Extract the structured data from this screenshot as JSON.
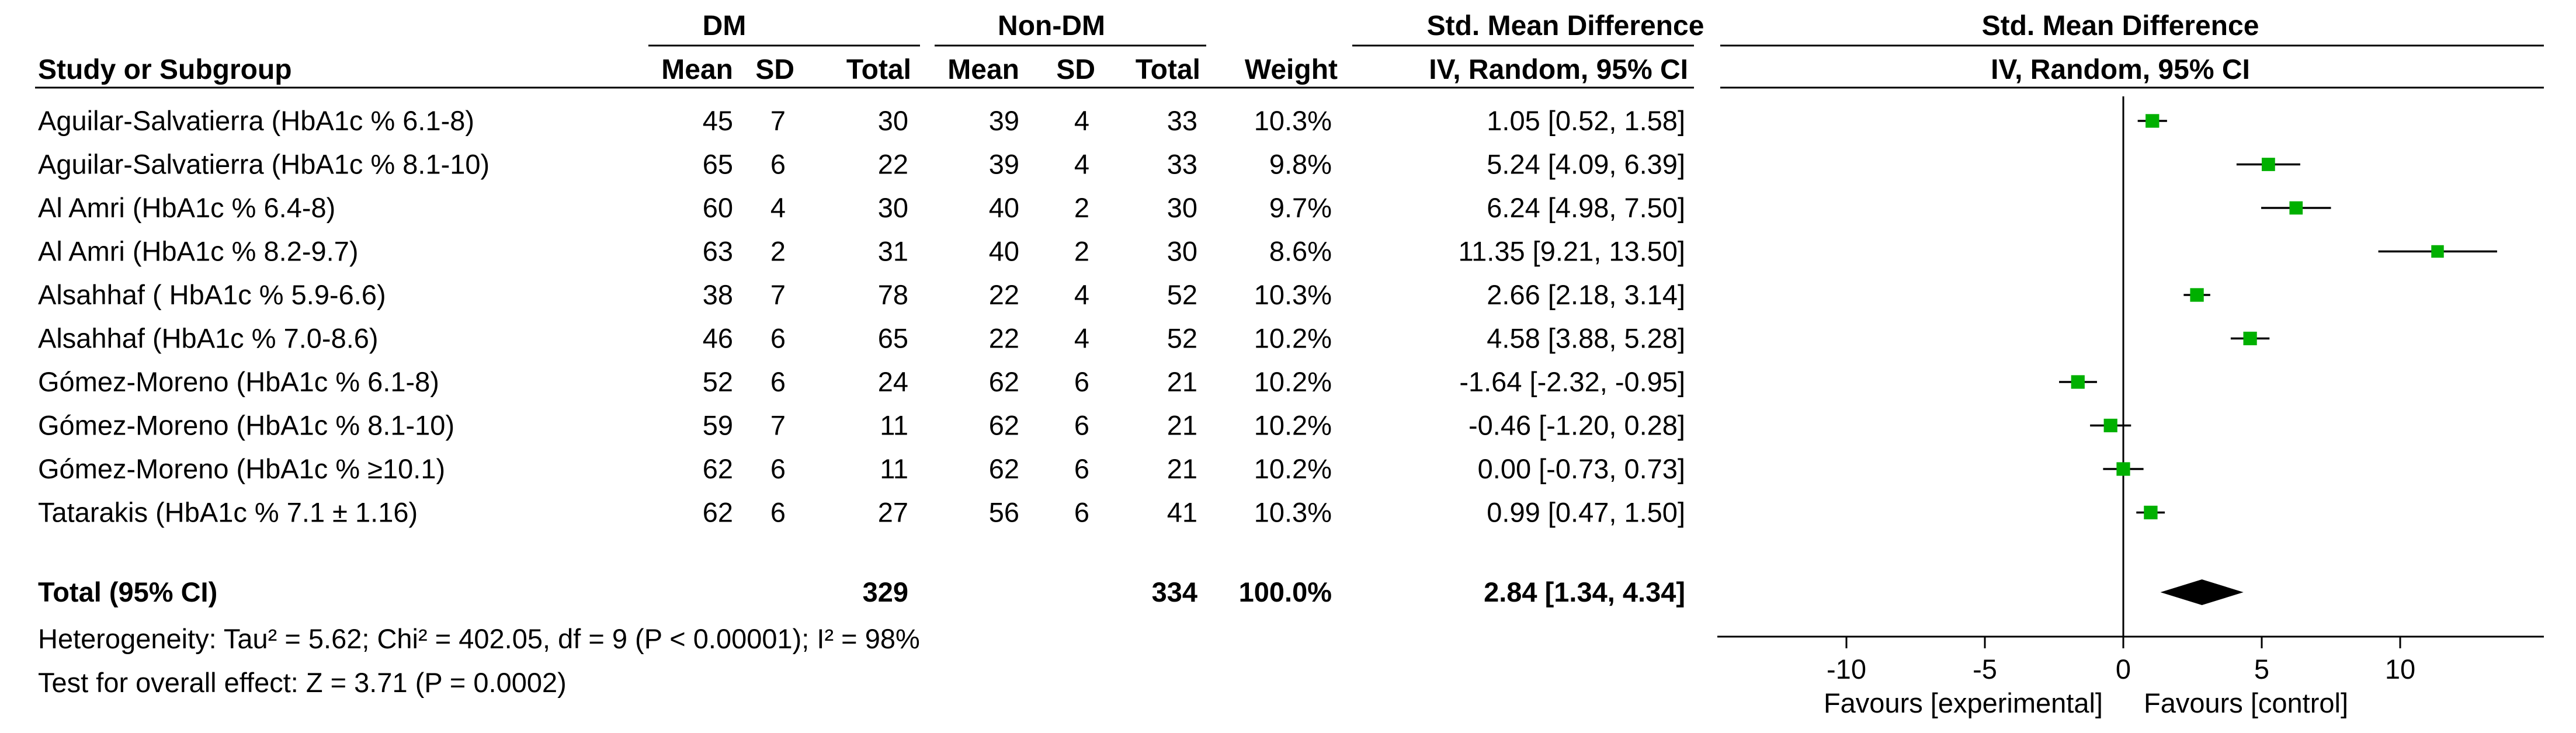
{
  "table": {
    "group_headers": {
      "experimental": "DM",
      "control": "Non-DM",
      "effect": "Std. Mean Difference",
      "plot": "Std. Mean Difference"
    },
    "columns": {
      "study": "Study or Subgroup",
      "mean1": "Mean",
      "sd1": "SD",
      "total1": "Total",
      "mean2": "Mean",
      "sd2": "SD",
      "total2": "Total",
      "weight": "Weight",
      "effect_method": "IV, Random, 95% CI",
      "plot_method": "IV, Random, 95% CI"
    },
    "rows": [
      {
        "study": "Aguilar-Salvatierra (HbA1c % 6.1-8)",
        "mean1": "45",
        "sd1": "7",
        "total1": "30",
        "mean2": "39",
        "sd2": "4",
        "total2": "33",
        "weight": "10.3%",
        "ci_text": "1.05 [0.52, 1.58]"
      },
      {
        "study": "Aguilar-Salvatierra  (HbA1c % 8.1-10)",
        "mean1": "65",
        "sd1": "6",
        "total1": "22",
        "mean2": "39",
        "sd2": "4",
        "total2": "33",
        "weight": "9.8%",
        "ci_text": "5.24 [4.09, 6.39]"
      },
      {
        "study": "Al Amri (HbA1c % 6.4-8)",
        "mean1": "60",
        "sd1": "4",
        "total1": "30",
        "mean2": "40",
        "sd2": "2",
        "total2": "30",
        "weight": "9.7%",
        "ci_text": "6.24 [4.98, 7.50]"
      },
      {
        "study": "Al Amri (HbA1c % 8.2-9.7)",
        "mean1": "63",
        "sd1": "2",
        "total1": "31",
        "mean2": "40",
        "sd2": "2",
        "total2": "30",
        "weight": "8.6%",
        "ci_text": "11.35 [9.21, 13.50]"
      },
      {
        "study": "Alsahhaf ( HbA1c % 5.9-6.6)",
        "mean1": "38",
        "sd1": "7",
        "total1": "78",
        "mean2": "22",
        "sd2": "4",
        "total2": "52",
        "weight": "10.3%",
        "ci_text": "2.66 [2.18, 3.14]"
      },
      {
        "study": "Alsahhaf (HbA1c % 7.0-8.6)",
        "mean1": "46",
        "sd1": "6",
        "total1": "65",
        "mean2": "22",
        "sd2": "4",
        "total2": "52",
        "weight": "10.2%",
        "ci_text": "4.58 [3.88, 5.28]"
      },
      {
        "study": "Gómez-Moreno   (HbA1c % 6.1-8)",
        "mean1": "52",
        "sd1": "6",
        "total1": "24",
        "mean2": "62",
        "sd2": "6",
        "total2": "21",
        "weight": "10.2%",
        "ci_text": "-1.64 [-2.32, -0.95]"
      },
      {
        "study": "Gómez-Moreno  (HbA1c % 8.1-10)",
        "mean1": "59",
        "sd1": "7",
        "total1": "11",
        "mean2": "62",
        "sd2": "6",
        "total2": "21",
        "weight": "10.2%",
        "ci_text": "-0.46 [-1.20, 0.28]"
      },
      {
        "study": "Gómez-Moreno (HbA1c % ≥10.1)",
        "mean1": "62",
        "sd1": "6",
        "total1": "11",
        "mean2": "62",
        "sd2": "6",
        "total2": "21",
        "weight": "10.2%",
        "ci_text": "0.00 [-0.73, 0.73]"
      },
      {
        "study": "Tatarakis  (HbA1c %  7.1 ± 1.16)",
        "mean1": "62",
        "sd1": "6",
        "total1": "27",
        "mean2": "56",
        "sd2": "6",
        "total2": "41",
        "weight": "10.3%",
        "ci_text": "0.99 [0.47, 1.50]"
      }
    ],
    "total_row": {
      "label": "Total (95% CI)",
      "total1": "329",
      "total2": "334",
      "weight": "100.0%",
      "ci_text": "2.84 [1.34, 4.34]"
    },
    "heterogeneity": "Heterogeneity: Tau² = 5.62; Chi² = 402.05, df = 9 (P < 0.00001); I² = 98%",
    "overall_effect": "Test for overall effect: Z = 3.71 (P = 0.0002)"
  },
  "chart_data": {
    "type": "forest",
    "x_ticks": [
      "-10",
      "-5",
      "0",
      "5",
      "10"
    ],
    "xlim": [
      -15,
      15
    ],
    "favours_left": "Favours [experimental]",
    "favours_right": "Favours [control]",
    "colors": {
      "point": "#00b000",
      "line": "#000000",
      "diamond": "#000000"
    },
    "studies": [
      {
        "est": 1.05,
        "lo": 0.52,
        "hi": 1.58,
        "weight": 10.3
      },
      {
        "est": 5.24,
        "lo": 4.09,
        "hi": 6.39,
        "weight": 9.8
      },
      {
        "est": 6.24,
        "lo": 4.98,
        "hi": 7.5,
        "weight": 9.7
      },
      {
        "est": 11.35,
        "lo": 9.21,
        "hi": 13.5,
        "weight": 8.6
      },
      {
        "est": 2.66,
        "lo": 2.18,
        "hi": 3.14,
        "weight": 10.3
      },
      {
        "est": 4.58,
        "lo": 3.88,
        "hi": 5.28,
        "weight": 10.2
      },
      {
        "est": -1.64,
        "lo": -2.32,
        "hi": -0.95,
        "weight": 10.2
      },
      {
        "est": -0.46,
        "lo": -1.2,
        "hi": 0.28,
        "weight": 10.2
      },
      {
        "est": 0.0,
        "lo": -0.73,
        "hi": 0.73,
        "weight": 10.2
      },
      {
        "est": 0.99,
        "lo": 0.47,
        "hi": 1.5,
        "weight": 10.3
      }
    ],
    "pooled": {
      "est": 2.84,
      "lo": 1.34,
      "hi": 4.34
    }
  }
}
